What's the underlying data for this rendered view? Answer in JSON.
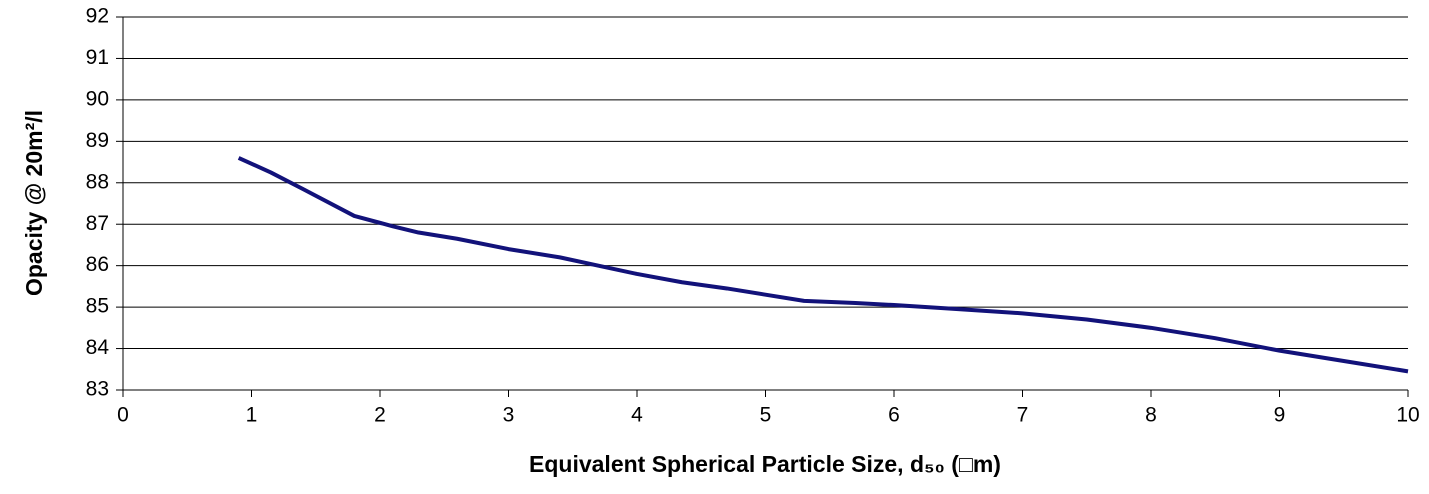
{
  "chart_data": {
    "type": "line",
    "xlabel": "Equivalent Spherical Particle Size, d₅₀ (□m)",
    "ylabel": "Opacity @ 20m²/l",
    "x": [
      0.9,
      1.15,
      1.4,
      1.8,
      2.1,
      2.3,
      2.6,
      3.0,
      3.4,
      3.7,
      4.0,
      4.35,
      4.7,
      5.0,
      5.3,
      5.7,
      6.0,
      6.5,
      7.0,
      7.5,
      8.0,
      8.5,
      9.0,
      9.5,
      10
    ],
    "series": [
      {
        "color": "#12127a",
        "values": [
          88.6,
          88.25,
          87.85,
          87.2,
          86.95,
          86.8,
          86.65,
          86.4,
          86.2,
          86.0,
          85.8,
          85.6,
          85.45,
          85.3,
          85.15,
          85.1,
          85.05,
          84.95,
          84.85,
          84.7,
          84.5,
          84.25,
          83.95,
          83.7,
          83.45
        ]
      }
    ],
    "xlim": [
      0,
      10
    ],
    "xticks": [
      0,
      1,
      2,
      3,
      4,
      5,
      6,
      7,
      8,
      9,
      10
    ],
    "ylim": [
      83,
      92
    ],
    "yticks": [
      83,
      84,
      85,
      86,
      87,
      88,
      89,
      90,
      91,
      92
    ],
    "grid": true
  }
}
